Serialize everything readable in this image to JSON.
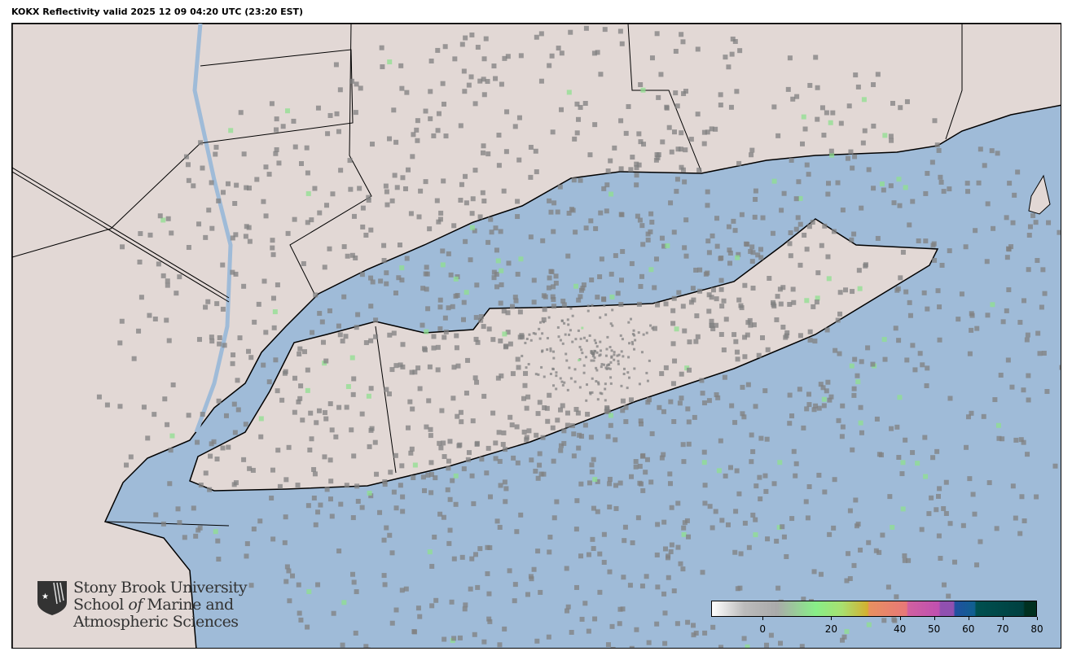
{
  "title": "KOKX Reflectivity valid 2025 12 09 04:20 UTC (23:20 EST)",
  "colors": {
    "ocean": "#9fbbd8",
    "land": "#e2d8d5",
    "echo": "#808080",
    "radar_weak_green": "#8fe08f"
  },
  "logo": {
    "line1": "Stony Brook University",
    "line2a": "School ",
    "line2b": "of",
    "line2c": " Marine and",
    "line3": "Atmospheric Sciences"
  },
  "colorbar": {
    "units_range": [
      -15,
      80
    ],
    "ticks": [
      "0",
      "20",
      "40",
      "50",
      "60",
      "70",
      "80"
    ],
    "tick_values": [
      0,
      20,
      40,
      50,
      60,
      70,
      80
    ]
  }
}
